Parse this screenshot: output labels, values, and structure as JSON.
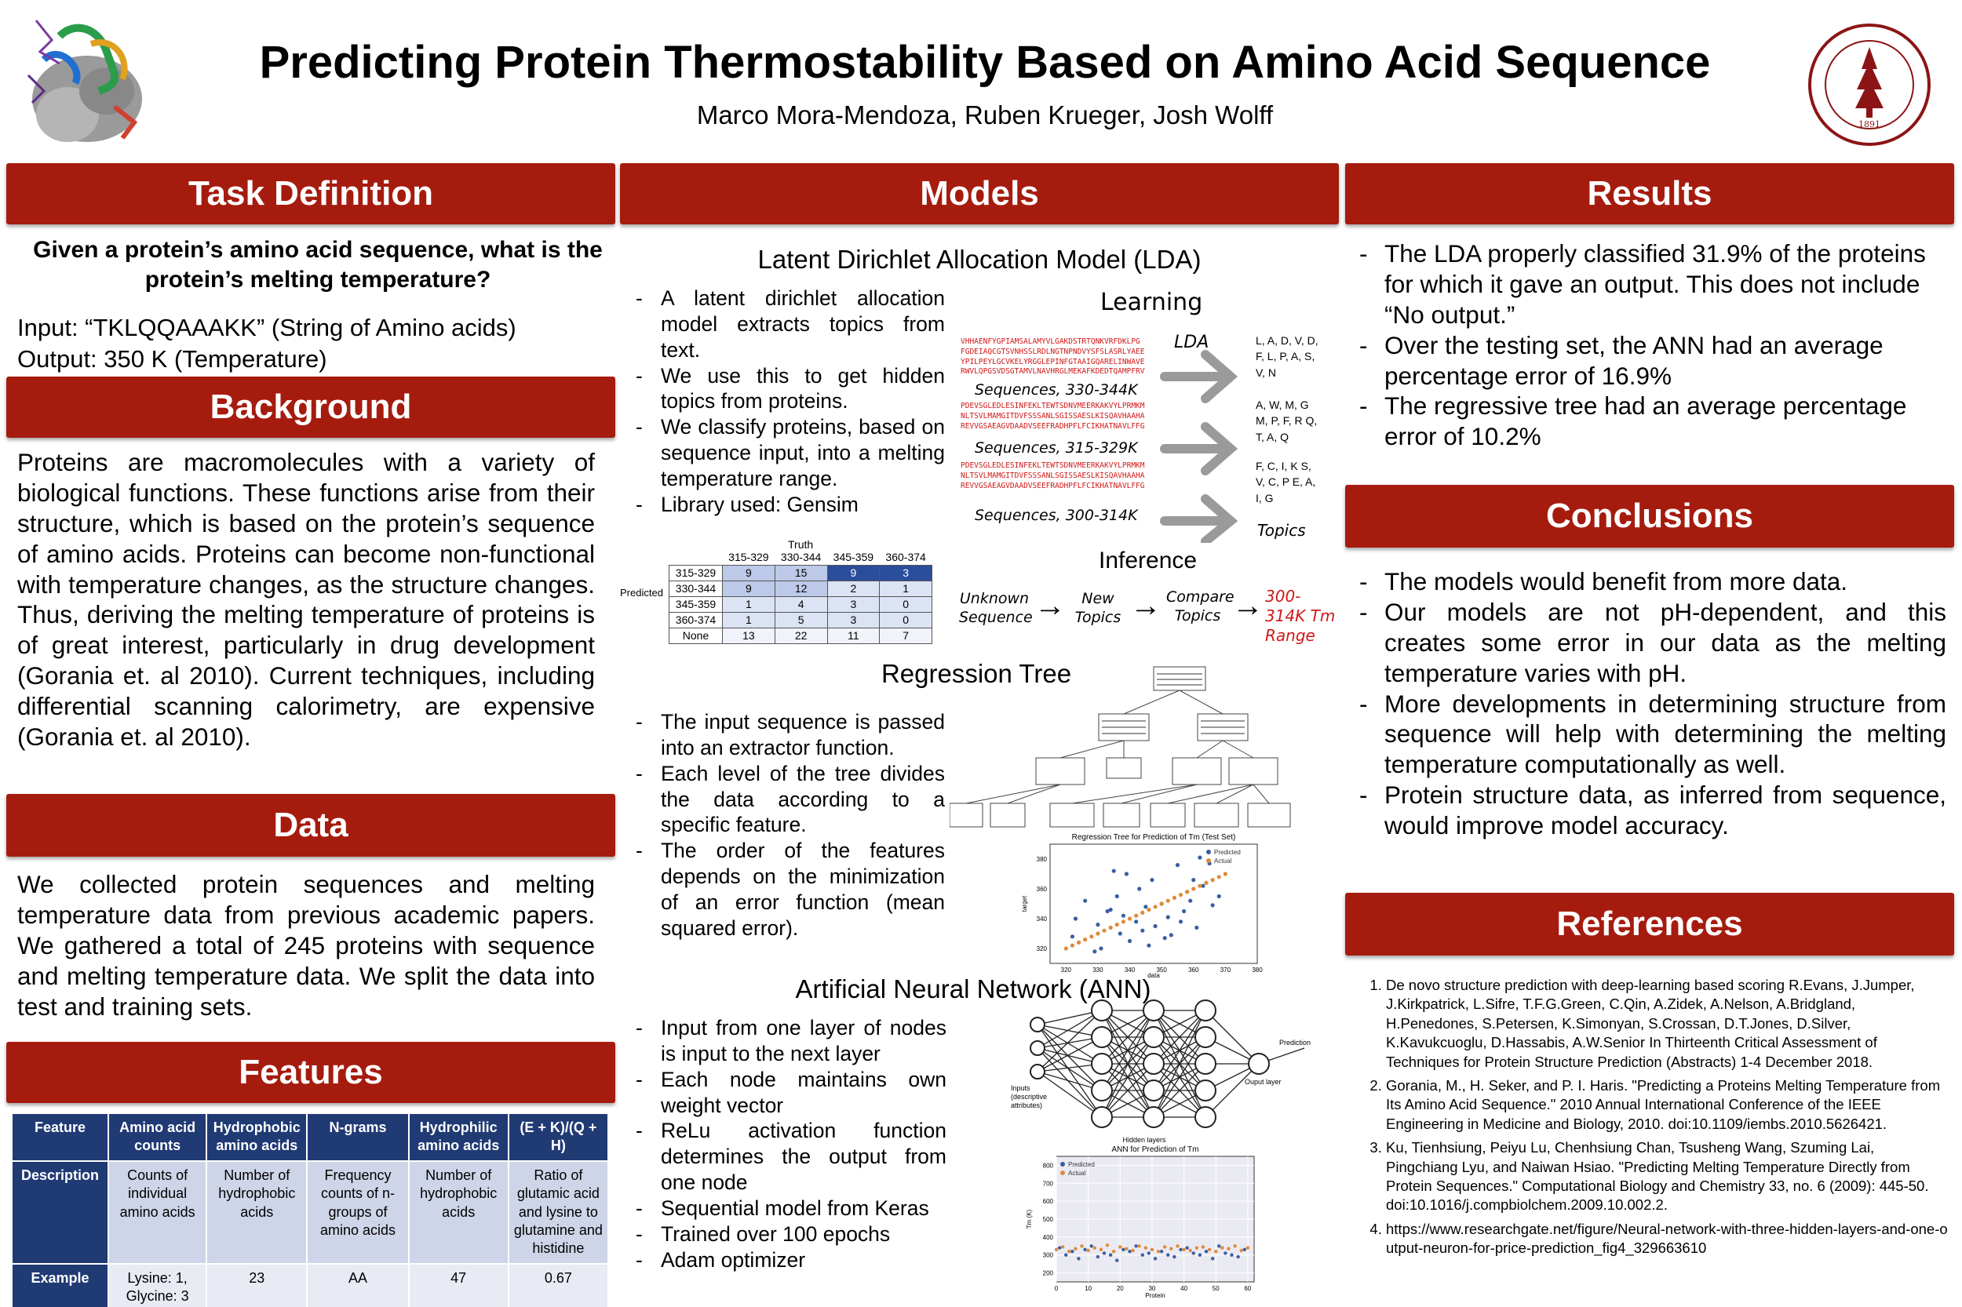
{
  "header": {
    "title": "Predicting Protein Thermostability Based on Amino Acid Sequence",
    "authors": "Marco Mora-Mendoza, Ruben Krueger, Josh Wolff",
    "seal_text": "LELAND STANFORD JUNIOR UNIVERSITY",
    "seal_year": "1891"
  },
  "task": {
    "heading": "Task Definition",
    "question": "Given a protein’s amino acid sequence, what is the protein’s melting temperature?",
    "input": "Input: “TKLQQAAAKK” (String of Amino acids)",
    "output": "Output: 350 K (Temperature)"
  },
  "background": {
    "heading": "Background",
    "text": "Proteins are macromolecules with a variety of biological functions. These functions arise from their structure, which is based on the protein’s sequence of amino acids. Proteins can become non-functional with temperature changes, as the structure changes. Thus, deriving the melting temperature of proteins is of great interest, particularly in drug development (Gorania et. al 2010). Current techniques, including differential scanning calorimetry, are expensive (Gorania et. al 2010)."
  },
  "data_section": {
    "heading": "Data",
    "text": "We collected protein sequences and melting temperature data from previous academic papers. We gathered a total of 245 proteins with sequence and melting temperature data. We split the data into test and training sets."
  },
  "features": {
    "heading": "Features",
    "header_row": [
      "Feature",
      "Amino acid counts",
      "Hydrophobic amino acids",
      "N-grams",
      "Hydrophilic amino acids",
      "(E + K)/(Q + H)"
    ],
    "description_row": [
      "Description",
      "Counts of individual amino acids",
      "Number of hydrophobic acids",
      "Frequency counts of n-groups of amino acids",
      "Number of hydrophobic acids",
      "Ratio of glutamic acid and lysine to glutamine and histidine"
    ],
    "example_row": [
      "Example",
      "Lysine: 1, Glycine: 3",
      "23",
      "AA",
      "47",
      "0.67"
    ]
  },
  "models": {
    "heading": "Models",
    "lda": {
      "title": "Latent Dirichlet Allocation Model (LDA)",
      "bullets": [
        "A latent dirichlet allocation model extracts topics from text.",
        "We use this to get hidden topics from proteins.",
        "We classify proteins, based on sequence input, into a melting temperature range.",
        "Library used: Gensim"
      ],
      "diagram": {
        "learning": "Learning",
        "lda_label": "LDA",
        "seq_labels": [
          "Sequences, 330-344K",
          "Sequences, 315-329K",
          "Sequences, 300-314K"
        ],
        "topics": [
          "L, A, D, V, D, F, L, P, A, S, V, N",
          "A, W, M, G M, P, F, R Q, T, A, Q",
          "F, C, I, K S, V, C, P E, A, I, G"
        ],
        "topics_label": "Topics",
        "inference": "Inference",
        "flow": [
          "Unknown Sequence",
          "New Topics",
          "Compare Topics"
        ],
        "result": "300-314K Tm Range",
        "seq_snippets": [
          "VHHAENFYGPIAMSALAMYVLGAKDSTRTQNKVRFDKLPG",
          "FGDEIAQCGTSVNHSSLRDLNGTNPNDVYSFSLASRLYAEER",
          "YPILPEYLGCVKELYRGGLEPINFGTAAIGQARELINWAVEDGTNGI",
          "RWVLQPGSVDSGTAMVLNAVHRGLMEKAFKDEDTQAMPFRVTE",
          "PDEVSGLEDLESINFEKLTEWTSDNVMEERKAKVYLPRMKMEEKY",
          "NLTSVLMAMGITDVFSSSANLSGISSAESLKISQAVHAAHAEINEAG",
          "REVVGSAEAGVDAADVSEEFRADHPFLFCIKHATNAVLFFGRCVSPAG",
          "PDEVSGLEDLESINFEKLTEWTSDNVMEERKAKVYLPRMKMEEKY",
          "NLTSVLMAMGITDVFSSSANLSGISSAESLKISQAVHAAHAEINEAG",
          "REVVGSAEAGVDAADVSEEFRADHPFLFCIKHATNAVLFFGRCVSPAG"
        ]
      },
      "confusion": {
        "truth_label": "Truth",
        "predicted_label": "Predicted",
        "columns": [
          "315-329",
          "330-344",
          "345-359",
          "360-374"
        ],
        "rows": [
          {
            "label": "315-329",
            "values": [
              "9",
              "15",
              "9",
              "3"
            ]
          },
          {
            "label": "330-344",
            "values": [
              "9",
              "12",
              "2",
              "1"
            ]
          },
          {
            "label": "345-359",
            "values": [
              "1",
              "4",
              "3",
              "0"
            ]
          },
          {
            "label": "360-374",
            "values": [
              "1",
              "5",
              "3",
              "0"
            ]
          },
          {
            "label": "None",
            "values": [
              "13",
              "22",
              "11",
              "7"
            ]
          }
        ]
      }
    },
    "tree": {
      "title": "Regression Tree",
      "bullets": [
        "The input sequence is passed into an extractor function.",
        "Each level of the tree divides the data according to a specific feature.",
        "The order of the features depends on the minimization of an error function (mean squared error)."
      ],
      "chart_title": "Regression Tree for Prediction of Tm (Test Set)",
      "legend": [
        "Predicted",
        "Actual"
      ],
      "xlabel": "data",
      "ylabel": "target"
    },
    "ann": {
      "title": "Artificial Neural Network (ANN)",
      "bullets": [
        "Input from one layer of nodes is input to the next layer",
        "Each node maintains own weight vector",
        "ReLu activation function determines the output from one node",
        "Sequential model from Keras",
        "Trained over 100 epochs",
        "Adam optimizer"
      ],
      "net_labels": {
        "inputs": "Inputs (descriptive attributes)",
        "hidden": "Hidden layers",
        "output_layer": "Ouput layer",
        "prediction": "Prediction"
      },
      "chart_title": "ANN for Prediction of Tm",
      "legend": [
        "Predicted",
        "Actual"
      ],
      "xlabel": "Protein",
      "ylabel": "Tm (K)"
    }
  },
  "results": {
    "heading": "Results",
    "bullets": [
      "The LDA properly classified 31.9% of the proteins for which it gave an output. This does not include “No output.”",
      "Over the testing set, the ANN had an average percentage error of 16.9%",
      "The regressive tree had an average percentage error of 10.2%"
    ]
  },
  "conclusions": {
    "heading": "Conclusions",
    "bullets": [
      "The models would benefit from more data.",
      "Our models are not pH-dependent, and this creates some error in our data as the melting temperature varies with pH.",
      "More developments in determining structure from sequence will help with determining the melting temperature computationally as well.",
      "Protein structure data, as inferred from sequence, would improve model accuracy."
    ]
  },
  "references": {
    "heading": "References",
    "items": [
      "De novo structure prediction with deep-learning based scoring R.Evans, J.Jumper, J.Kirkpatrick, L.Sifre, T.F.G.Green, C.Qin, A.Zidek, A.Nelson, A.Bridgland, H.Penedones, S.Petersen, K.Simonyan, S.Crossan, D.T.Jones, D.Silver, K.Kavukcuoglu, D.Hassabis, A.W.Senior In Thirteenth Critical Assessment of Techniques for Protein Structure Prediction (Abstracts) 1-4 December 2018.",
      "Gorania, M., H. Seker, and P. I. Haris. \"Predicting a Proteins Melting Temperature from Its Amino Acid Sequence.\" 2010 Annual International Conference of the IEEE Engineering in Medicine and Biology, 2010. doi:10.1109/iembs.2010.5626421.",
      "Ku, Tienhsiung, Peiyu Lu, Chenhsiung Chan, Tsusheng Wang, Szuming Lai, Pingchiang Lyu, and Naiwan Hsiao. \"Predicting Melting Temperature Directly from Protein Sequences.\" Computational Biology and Chemistry 33, no. 6 (2009): 445-50. doi:10.1016/j.compbiolchem.2009.10.002.2.",
      "https://www.researchgate.net/figure/Neural-network-with-three-hidden-layers-and-one-output-neuron-for-price-prediction_fig4_329663610"
    ]
  },
  "chart_data": [
    {
      "type": "scatter",
      "title": "Regression Tree for Prediction of Tm (Test Set)",
      "xlabel": "data",
      "ylabel": "target",
      "xlim": [
        315,
        380
      ],
      "ylim": [
        310,
        390
      ],
      "xticks": [
        "320",
        "330",
        "340",
        "350",
        "360",
        "370",
        "380"
      ],
      "yticks": [
        "320",
        "340",
        "360",
        "380"
      ],
      "legend_position": "top-right",
      "series": [
        {
          "name": "Predicted",
          "color": "#3a5fa0",
          "x": [
            322,
            326,
            330,
            331,
            333,
            335,
            337,
            338,
            340,
            342,
            343,
            345,
            346,
            348,
            350,
            352,
            353,
            355,
            357,
            358,
            360,
            361,
            363,
            365,
            366,
            368,
            323,
            329,
            336,
            344,
            351,
            359,
            362,
            347,
            339,
            334,
            356
          ],
          "y": [
            328,
            352,
            336,
            320,
            345,
            372,
            330,
            342,
            325,
            338,
            360,
            348,
            322,
            335,
            350,
            341,
            329,
            376,
            345,
            358,
            366,
            334,
            362,
            377,
            349,
            355,
            340,
            318,
            355,
            332,
            327,
            352,
            381,
            366,
            370,
            346,
            338
          ]
        },
        {
          "name": "Actual",
          "color": "#e08a3a",
          "x": [
            320,
            322,
            324,
            326,
            328,
            330,
            332,
            334,
            336,
            338,
            340,
            342,
            344,
            346,
            348,
            350,
            352,
            354,
            356,
            358,
            360,
            362,
            364,
            366,
            368,
            370
          ],
          "y": [
            320,
            322,
            324,
            326,
            328,
            330,
            332,
            334,
            336,
            338,
            340,
            342,
            344,
            346,
            348,
            350,
            352,
            354,
            356,
            358,
            360,
            362,
            364,
            366,
            368,
            370
          ]
        }
      ]
    },
    {
      "type": "scatter",
      "title": "ANN for Prediction of Tm",
      "xlabel": "Protein",
      "ylabel": "Tm (K)",
      "xlim": [
        0,
        62
      ],
      "ylim": [
        150,
        850
      ],
      "xticks": [
        "0",
        "10",
        "20",
        "30",
        "40",
        "50",
        "60"
      ],
      "yticks": [
        "200",
        "300",
        "400",
        "500",
        "600",
        "700",
        "800"
      ],
      "legend_position": "top-left",
      "series": [
        {
          "name": "Predicted",
          "color": "#3a5fa0",
          "x": [
            1,
            3,
            5,
            7,
            9,
            11,
            13,
            15,
            17,
            19,
            21,
            23,
            25,
            27,
            29,
            31,
            33,
            35,
            37,
            39,
            41,
            43,
            45,
            47,
            49,
            51,
            53,
            55,
            57,
            59
          ],
          "y": [
            340,
            300,
            320,
            280,
            330,
            350,
            290,
            310,
            300,
            270,
            330,
            320,
            350,
            300,
            310,
            280,
            320,
            300,
            290,
            330,
            340,
            310,
            300,
            320,
            280,
            350,
            310,
            300,
            290,
            330
          ]
        },
        {
          "name": "Actual",
          "color": "#e08a3a",
          "x": [
            0,
            2,
            4,
            6,
            8,
            10,
            12,
            14,
            16,
            18,
            20,
            22,
            24,
            26,
            28,
            30,
            32,
            34,
            36,
            38,
            40,
            42,
            44,
            46,
            48,
            50,
            52,
            54,
            56,
            58,
            60
          ],
          "y": [
            330,
            345,
            320,
            335,
            350,
            325,
            340,
            330,
            355,
            320,
            345,
            335,
            325,
            350,
            340,
            330,
            320,
            345,
            335,
            350,
            330,
            325,
            340,
            345,
            330,
            320,
            340,
            335,
            350,
            325,
            340
          ]
        }
      ]
    }
  ]
}
